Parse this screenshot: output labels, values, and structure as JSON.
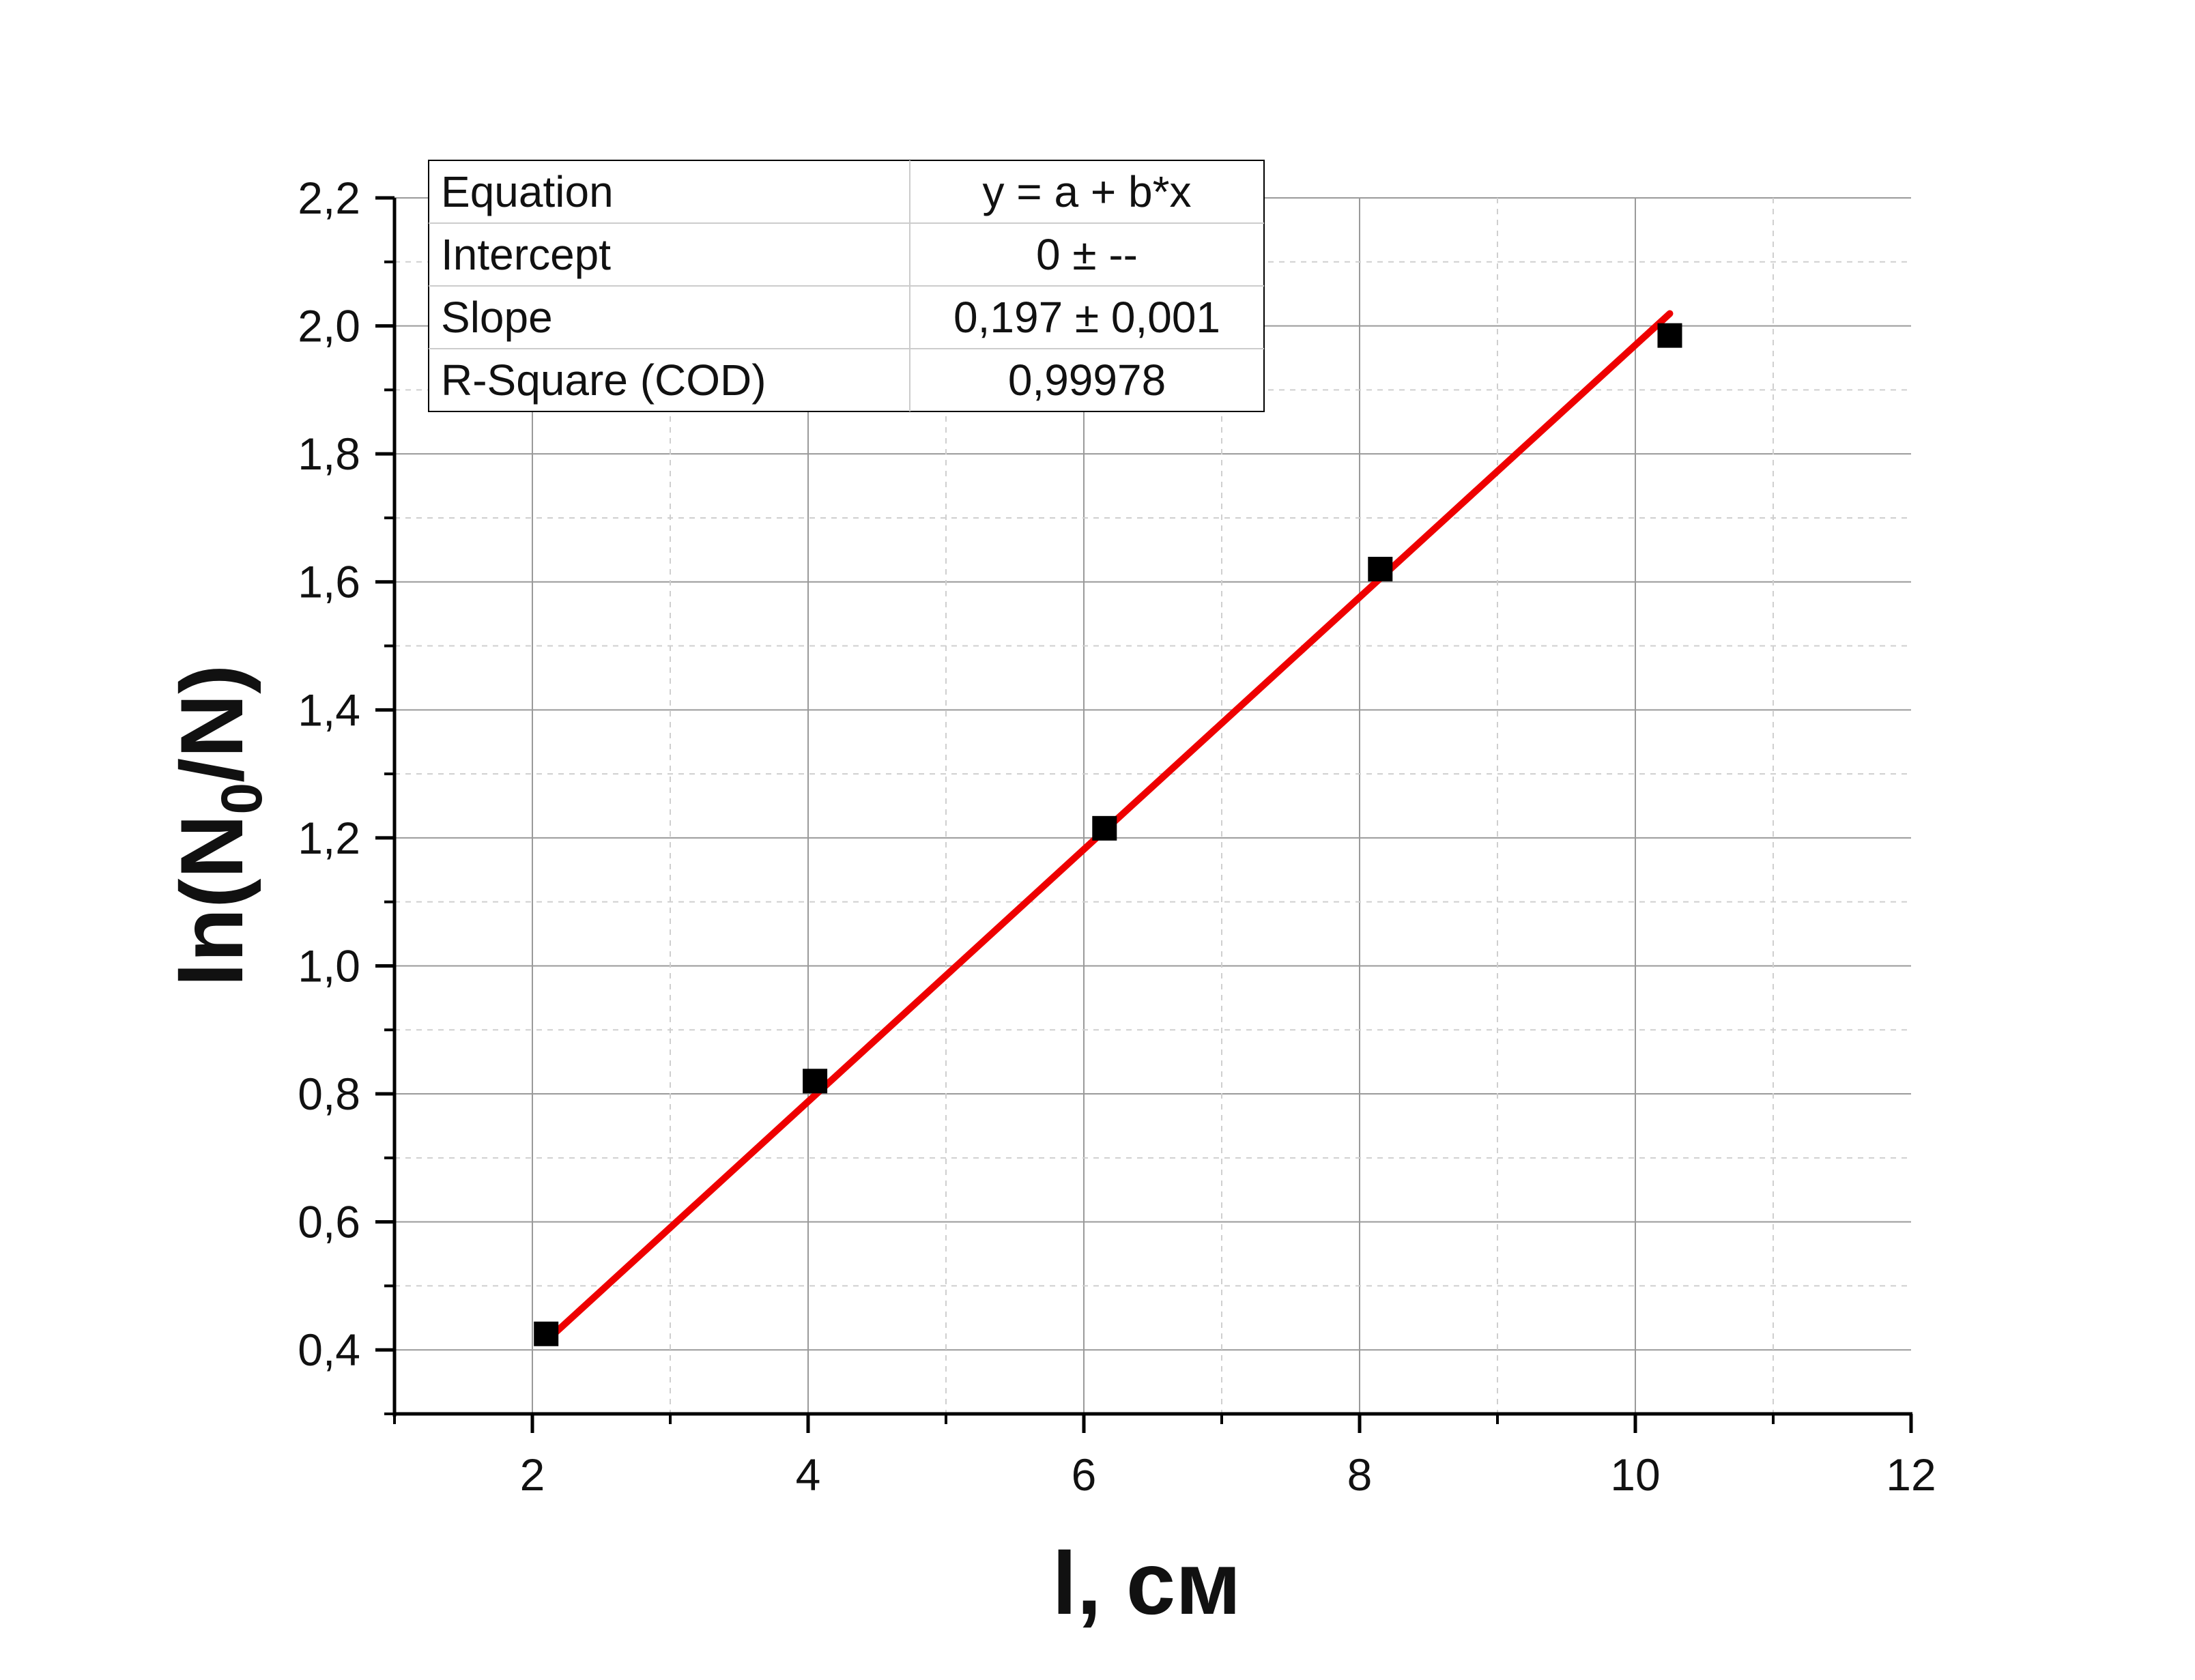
{
  "chart_data": {
    "type": "scatter",
    "xlabel": "l, см",
    "ylabel_parts": [
      "ln(N",
      "0",
      "/N)"
    ],
    "xlim": [
      1,
      12
    ],
    "ylim": [
      0.3,
      2.2
    ],
    "xticks": [
      2,
      4,
      6,
      8,
      10,
      12
    ],
    "xtick_labels": [
      "2",
      "4",
      "6",
      "8",
      "10",
      "12"
    ],
    "yticks": [
      0.4,
      0.6,
      0.8,
      1.0,
      1.2,
      1.4,
      1.6,
      1.8,
      2.0,
      2.2
    ],
    "ytick_labels": [
      "0,4",
      "0,6",
      "0,8",
      "1,0",
      "1,2",
      "1,4",
      "1,6",
      "1,8",
      "2,0",
      "2,2"
    ],
    "grid": true,
    "series": [
      {
        "marker": "square",
        "color": "#000000",
        "x": [
          2.1,
          4.05,
          6.15,
          8.15,
          10.25
        ],
        "y": [
          0.425,
          0.82,
          1.215,
          1.62,
          1.985
        ]
      }
    ],
    "fit": {
      "type": "line",
      "color": "#ee0000",
      "intercept": 0,
      "slope": 0.197,
      "x_range": [
        2.1,
        10.25
      ]
    },
    "stats_table": {
      "rows": [
        [
          "Equation",
          "y = a + b*x"
        ],
        [
          "Intercept",
          "0 ± --"
        ],
        [
          "Slope",
          "0,197 ± 0,001"
        ],
        [
          "R-Square (COD)",
          "0,99978"
        ]
      ]
    }
  }
}
